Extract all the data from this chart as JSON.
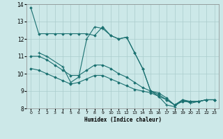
{
  "xlabel": "Humidex (Indice chaleur)",
  "bg_color": "#cce8e8",
  "line_color": "#1a7070",
  "grid_color": "#aacccc",
  "xlim": [
    -0.5,
    23.5
  ],
  "ylim": [
    8,
    14
  ],
  "yticks": [
    8,
    9,
    10,
    11,
    12,
    13,
    14
  ],
  "xticks": [
    0,
    1,
    2,
    3,
    4,
    5,
    6,
    7,
    8,
    9,
    10,
    11,
    12,
    13,
    14,
    15,
    16,
    17,
    18,
    19,
    20,
    21,
    22,
    23
  ],
  "s1_x": [
    0,
    1,
    2,
    3,
    4,
    5,
    6,
    7,
    8,
    9,
    10,
    11,
    12,
    13,
    14,
    15,
    16,
    17,
    18,
    19,
    20,
    21,
    22,
    23
  ],
  "s1_y": [
    13.8,
    12.3,
    12.3,
    12.3,
    12.3,
    12.3,
    12.3,
    12.3,
    12.2,
    12.7,
    12.2,
    12.0,
    12.1,
    11.2,
    10.3,
    9.0,
    8.9,
    8.6,
    8.2,
    8.5,
    8.4,
    8.4,
    8.5,
    8.5
  ],
  "s2_x": [
    0,
    1,
    2,
    3,
    4,
    5,
    6,
    7,
    8,
    9,
    10,
    11,
    12,
    13,
    14,
    15,
    16,
    17,
    18,
    19,
    20,
    21,
    22,
    23
  ],
  "s2_y": [
    11.0,
    11.0,
    10.8,
    10.5,
    10.2,
    9.9,
    9.9,
    10.2,
    10.5,
    10.5,
    10.3,
    10.0,
    9.8,
    9.5,
    9.2,
    9.0,
    8.8,
    8.5,
    8.2,
    8.4,
    8.4,
    8.4,
    8.5,
    8.5
  ],
  "s3_x": [
    0,
    1,
    2,
    3,
    4,
    5,
    6,
    7,
    8,
    9,
    10,
    11,
    12,
    13,
    14,
    15,
    16,
    17,
    18,
    19,
    20,
    21,
    22,
    23
  ],
  "s3_y": [
    10.3,
    10.2,
    10.0,
    9.8,
    9.6,
    9.4,
    9.5,
    9.7,
    9.9,
    9.9,
    9.7,
    9.5,
    9.3,
    9.1,
    9.0,
    8.9,
    8.7,
    8.5,
    8.2,
    8.4,
    8.4,
    8.4,
    8.5,
    8.5
  ],
  "s4_x": [
    1,
    2,
    4,
    5,
    6,
    7,
    8,
    9,
    10,
    11,
    12,
    13,
    14,
    15,
    16,
    17,
    18,
    19,
    20,
    21,
    22,
    23
  ],
  "s4_y": [
    11.2,
    11.0,
    10.4,
    9.5,
    9.8,
    12.0,
    12.7,
    12.6,
    12.2,
    12.0,
    12.1,
    11.2,
    10.3,
    9.0,
    8.7,
    8.2,
    8.1,
    8.5,
    8.3,
    8.4,
    8.5,
    8.5
  ]
}
